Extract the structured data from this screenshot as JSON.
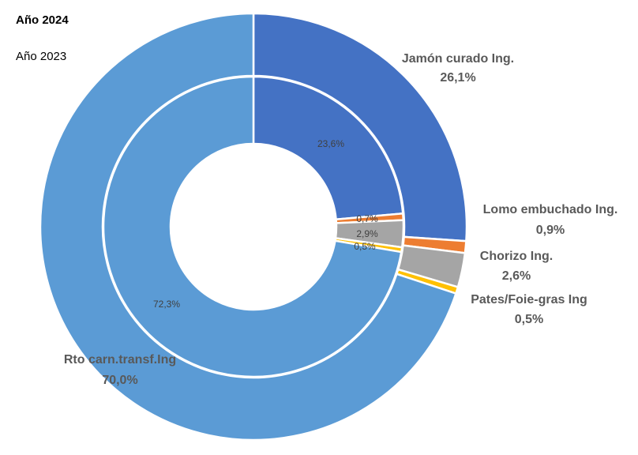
{
  "legend": {
    "outer_ring": "Año 2024",
    "inner_ring": "Año 2023"
  },
  "chart_data": {
    "type": "donut",
    "categories": [
      "Jamón curado Ing.",
      "Lomo embuchado Ing.",
      "Chorizo Ing.",
      "Pates/Foie-gras Ing",
      "Rto carn.transf.Ing"
    ],
    "colors": [
      "#4472c4",
      "#ed7d31",
      "#a5a5a5",
      "#ffc000",
      "#5b9bd5"
    ],
    "series": [
      {
        "name": "Año 2024",
        "ring": "outer",
        "values": [
          26.1,
          0.9,
          2.6,
          0.5,
          70.0
        ],
        "labels": [
          "26,1%",
          "0,9%",
          "2,6%",
          "0,5%",
          "70,0%"
        ]
      },
      {
        "name": "Año 2023",
        "ring": "inner",
        "values": [
          23.6,
          0.7,
          2.9,
          0.5,
          72.3
        ],
        "labels": [
          "23,6%",
          "0,7%",
          "2,9%",
          "0,5%",
          "72,3%"
        ]
      }
    ],
    "start_angle": "12 o'clock",
    "direction": "clockwise"
  }
}
